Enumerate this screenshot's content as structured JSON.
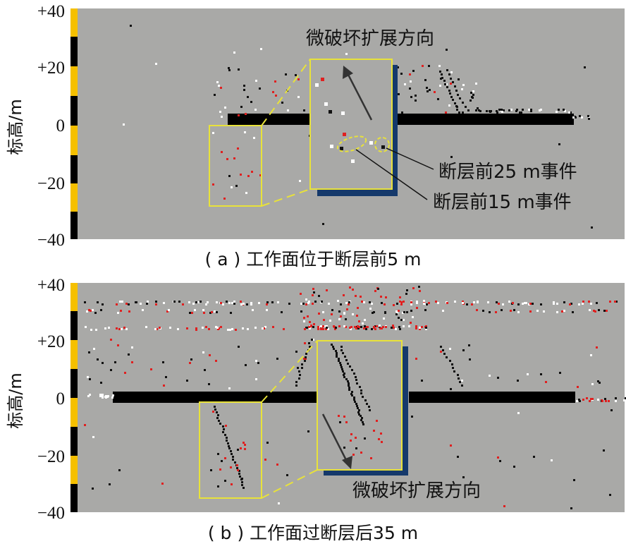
{
  "y_axis_label": "标高/m",
  "y_ticks": [
    "+40",
    "+20",
    "0",
    "−20",
    "−40"
  ],
  "panel_a": {
    "caption": "( a ) 工作面位于断层前5 m",
    "annotations": {
      "expand_direction": "微破坏扩展方向",
      "event_25": "断层前25 m事件",
      "event_15": "断层前15 m事件"
    }
  },
  "panel_b": {
    "caption": "( b ) 工作面过断层后35 m",
    "annotations": {
      "expand_direction": "微破坏扩展方向"
    }
  },
  "colors": {
    "background": "#a9a9a7",
    "coal_seam": "#000000",
    "zoom_box": "#e8e23a",
    "shadow": "#15396b",
    "axis_yellow": "#f5c000",
    "event_red": "#e02020",
    "event_white": "#ffffff",
    "event_black": "#111111"
  }
}
